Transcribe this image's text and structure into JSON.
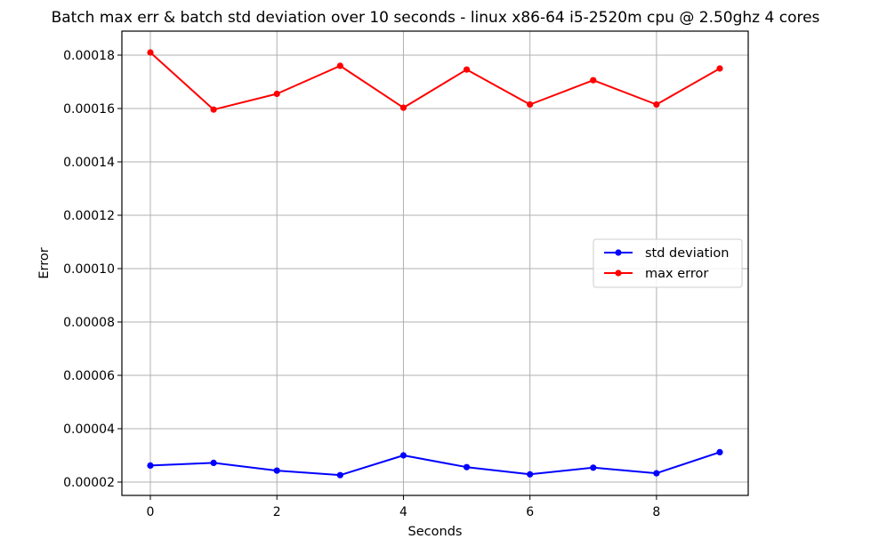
{
  "chart_data": {
    "type": "line",
    "title": "Batch max err & batch std deviation over 10 seconds - linux x86-64 i5-2520m cpu @ 2.50ghz 4 cores",
    "xlabel": "Seconds",
    "ylabel": "Error",
    "x": [
      0,
      1,
      2,
      3,
      4,
      5,
      6,
      7,
      8,
      9
    ],
    "xlim": [
      -0.45,
      9.45
    ],
    "ylim": [
      1.5e-05,
      0.000189
    ],
    "xticks": [
      0,
      2,
      4,
      6,
      8
    ],
    "xtick_labels": [
      "0",
      "2",
      "4",
      "6",
      "8"
    ],
    "yticks": [
      2e-05,
      4e-05,
      6e-05,
      8e-05,
      0.0001,
      0.00012,
      0.00014,
      0.00016,
      0.00018
    ],
    "ytick_labels": [
      "0.00002",
      "0.00004",
      "0.00006",
      "0.00008",
      "0.00010",
      "0.00012",
      "0.00014",
      "0.00016",
      "0.00018"
    ],
    "grid": true,
    "legend_position": "center-right",
    "series": [
      {
        "name": "std deviation",
        "color": "#0000ff",
        "values": [
          2.62e-05,
          2.72e-05,
          2.43e-05,
          2.26e-05,
          3e-05,
          2.56e-05,
          2.29e-05,
          2.54e-05,
          2.33e-05,
          3.12e-05
        ]
      },
      {
        "name": "max error",
        "color": "#ff0000",
        "values": [
          0.000181,
          0.0001596,
          0.0001655,
          0.000176,
          0.0001603,
          0.0001746,
          0.0001615,
          0.0001706,
          0.0001615,
          0.000175
        ]
      }
    ]
  }
}
